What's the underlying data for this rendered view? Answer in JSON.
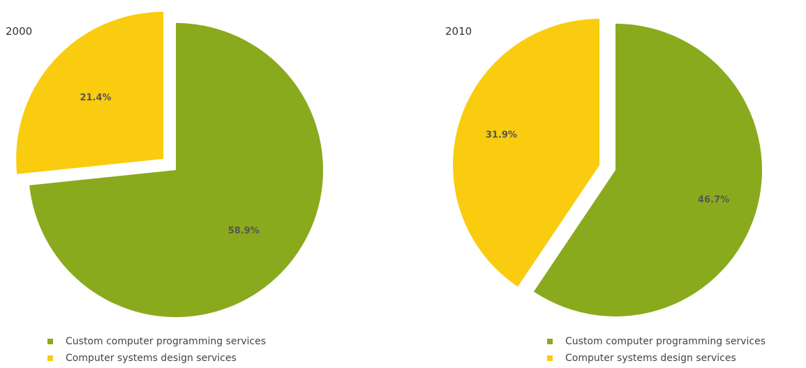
{
  "chart_data": [
    {
      "type": "pie",
      "title": "2000",
      "slices": [
        {
          "label": "Custom computer programming services",
          "value": 58.9,
          "value_label": "58.9%",
          "color": "#8aaa1d",
          "exploded": false
        },
        {
          "label": "Computer systems design services",
          "value": 21.4,
          "value_label": "21.4%",
          "color": "#f9cc0f",
          "exploded": true
        }
      ],
      "legend": {
        "position": "bottom"
      }
    },
    {
      "type": "pie",
      "title": "2010",
      "slices": [
        {
          "label": "Custom computer programming services",
          "value": 46.7,
          "value_label": "46.7%",
          "color": "#8aaa1d",
          "exploded": false
        },
        {
          "label": "Computer systems design services",
          "value": 31.9,
          "value_label": "31.9%",
          "color": "#f9cc0f",
          "exploded": true
        }
      ],
      "legend": {
        "position": "bottom"
      }
    }
  ]
}
